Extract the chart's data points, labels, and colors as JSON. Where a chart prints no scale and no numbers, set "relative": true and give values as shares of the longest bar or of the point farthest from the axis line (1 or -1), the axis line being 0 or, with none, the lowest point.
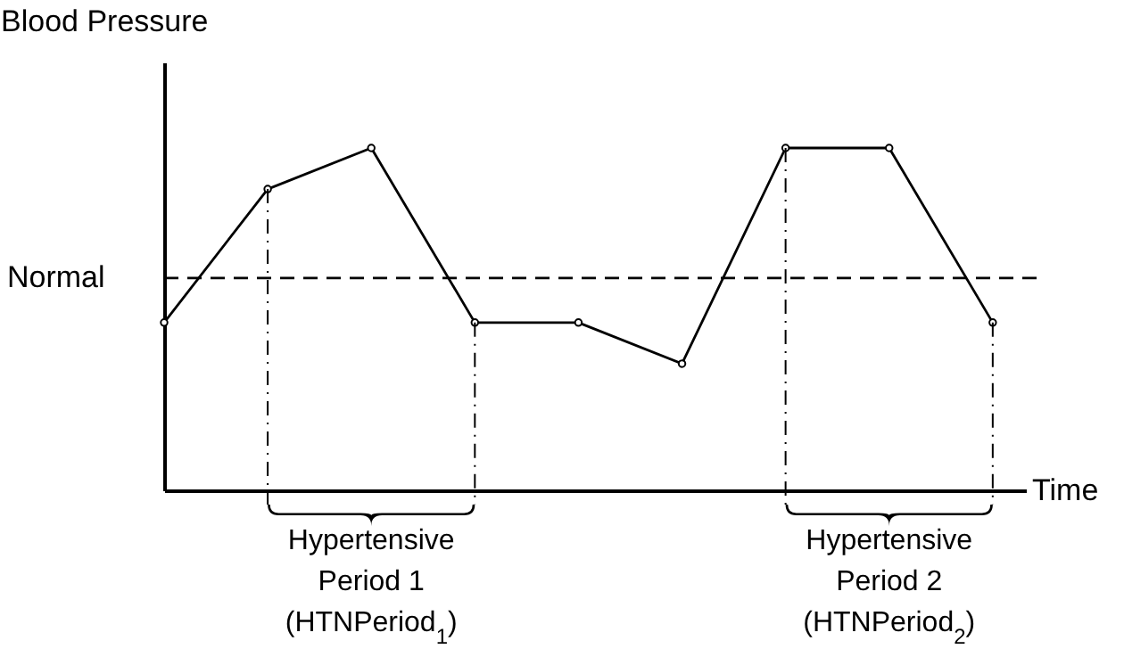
{
  "chart_data": {
    "type": "line",
    "relative": true,
    "xlabel": "Time",
    "ylabel": "Blood Pressure",
    "categories": [
      null,
      null,
      null,
      null,
      null,
      null,
      null,
      null,
      null
    ],
    "series": [
      {
        "color": "#000000",
        "values": [
          0.49,
          0.88,
          1,
          0.49,
          0.49,
          0.37,
          1,
          1,
          0.49
        ]
      }
    ],
    "marker": "circle",
    "line_style": "solid",
    "ref_lines": [
      {
        "axis": "y",
        "value": 0.62,
        "label": "Normal",
        "color": "#000000",
        "line_style": "dashed"
      }
    ],
    "annotations": [
      "Hypertensive\nPeriod 1\n(HTNPeriod$_{1}$)",
      "Hypertensive\nPeriod 2\n(HTNPeriod$_{2}$)"
    ]
  }
}
